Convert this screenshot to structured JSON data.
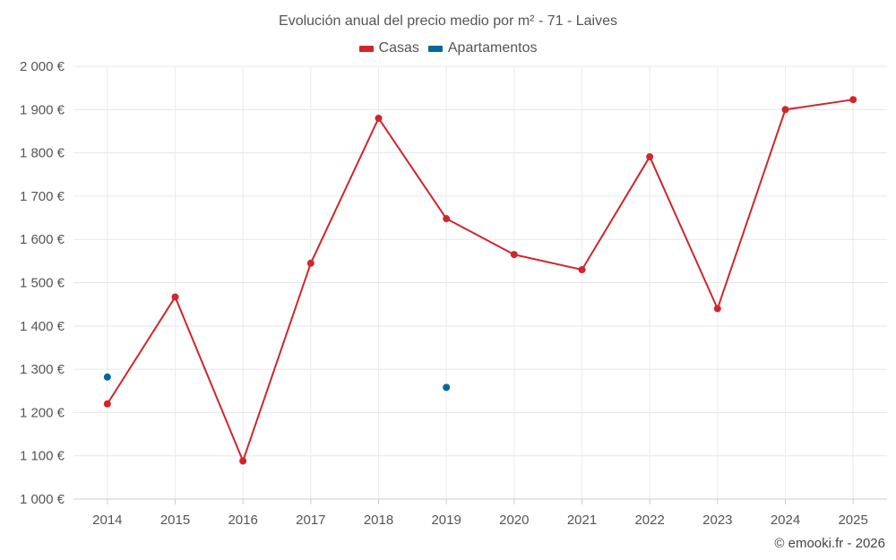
{
  "chart_data": {
    "type": "line",
    "title": "Evolución anual del precio medio por m² - 71 - Laives",
    "x": [
      2014,
      2015,
      2016,
      2017,
      2018,
      2019,
      2020,
      2021,
      2022,
      2023,
      2024,
      2025
    ],
    "categories": [
      "2014",
      "2015",
      "2016",
      "2017",
      "2018",
      "2019",
      "2020",
      "2021",
      "2022",
      "2023",
      "2024",
      "2025"
    ],
    "series": [
      {
        "name": "Casas",
        "color": "#d0262b",
        "values": [
          1220,
          1467,
          1088,
          1545,
          1880,
          1648,
          1565,
          1530,
          1791,
          1440,
          1900,
          1923
        ]
      },
      {
        "name": "Apartamentos",
        "color": "#04689b",
        "values": [
          1282,
          null,
          null,
          null,
          null,
          1258,
          null,
          null,
          null,
          null,
          null,
          null
        ]
      }
    ],
    "ylim": [
      1000,
      2000
    ],
    "yticks": [
      1000,
      1100,
      1200,
      1300,
      1400,
      1500,
      1600,
      1700,
      1800,
      1900,
      2000
    ],
    "ytick_labels": [
      "1 000 €",
      "1 100 €",
      "1 200 €",
      "1 300 €",
      "1 400 €",
      "1 500 €",
      "1 600 €",
      "1 700 €",
      "1 800 €",
      "1 900 €",
      "2 000 €"
    ],
    "xlabel": "",
    "ylabel": "",
    "grid": true,
    "legend_position": "top-center"
  },
  "legend": {
    "items": [
      {
        "label": "Casas",
        "color": "#d0262b"
      },
      {
        "label": "Apartamentos",
        "color": "#04689b"
      }
    ]
  },
  "credit": "© emooki.fr - 2026"
}
